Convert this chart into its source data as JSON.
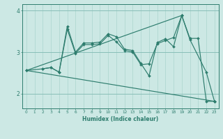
{
  "xlabel": "Humidex (Indice chaleur)",
  "bg_color": "#cce8e4",
  "line_color": "#2e7d6e",
  "grid_color_v": "#aad4ce",
  "grid_color_h": "#88bfb8",
  "xlim": [
    -0.5,
    23.5
  ],
  "ylim": [
    1.65,
    4.15
  ],
  "xticks": [
    0,
    1,
    2,
    3,
    4,
    5,
    6,
    7,
    8,
    9,
    10,
    11,
    12,
    13,
    14,
    15,
    16,
    17,
    18,
    19,
    20,
    21,
    22,
    23
  ],
  "yticks": [
    2,
    3,
    4
  ],
  "line1_x": [
    0,
    2,
    3,
    4,
    5,
    6,
    7,
    8,
    9,
    10,
    11,
    12,
    13,
    14,
    15,
    16,
    17,
    18,
    19,
    20,
    21,
    22,
    23
  ],
  "line1_y": [
    2.56,
    2.6,
    2.63,
    2.52,
    3.62,
    3.0,
    3.22,
    3.22,
    3.24,
    3.44,
    3.37,
    3.07,
    3.04,
    2.73,
    2.43,
    3.23,
    3.32,
    3.13,
    3.88,
    3.33,
    3.33,
    1.82,
    1.82
  ],
  "line2_x": [
    2,
    3,
    4,
    5,
    6,
    7,
    8,
    9,
    10,
    11,
    12,
    13,
    14,
    15,
    16,
    17,
    18,
    19,
    20,
    22,
    23
  ],
  "line2_y": [
    2.6,
    2.63,
    2.52,
    3.55,
    2.97,
    3.18,
    3.18,
    3.2,
    3.4,
    3.25,
    3.04,
    3.0,
    2.7,
    2.72,
    3.2,
    3.28,
    3.35,
    3.88,
    3.3,
    2.52,
    1.82
  ],
  "line3_x": [
    0,
    23
  ],
  "line3_y": [
    2.56,
    1.82
  ],
  "line4_x": [
    0,
    19
  ],
  "line4_y": [
    2.56,
    3.88
  ]
}
